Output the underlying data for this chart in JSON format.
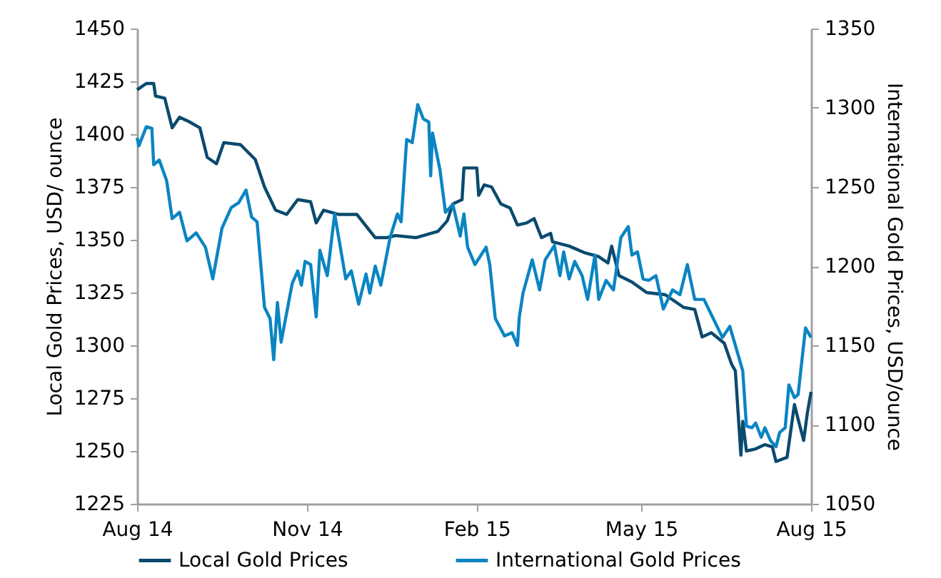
{
  "chart_data": {
    "type": "line",
    "ylabel": "Local Gold Prices, USD/ ounce",
    "y2label": "International Gold Prices, USD/ounce",
    "xlim": [
      "2014-08-01",
      "2015-08-01"
    ],
    "xticks": [
      {
        "value": "2014-08-01",
        "label": "Aug 14"
      },
      {
        "value": "2014-11-01",
        "label": "Nov 14"
      },
      {
        "value": "2015-02-01",
        "label": "Feb 15"
      },
      {
        "value": "2015-05-01",
        "label": "May 15"
      },
      {
        "value": "2015-08-01",
        "label": "Aug 15"
      }
    ],
    "ylim": [
      1225,
      1450
    ],
    "yticks": [
      1225,
      1250,
      1275,
      1300,
      1325,
      1350,
      1375,
      1400,
      1425,
      1450
    ],
    "y2lim": [
      1050,
      1350
    ],
    "y2ticks": [
      1050,
      1100,
      1150,
      1200,
      1250,
      1300,
      1350
    ],
    "legend": "bottom",
    "grid": false,
    "marker": "none",
    "line_style": "solid",
    "series": [
      {
        "name": "Local Gold Prices",
        "color": "#0b4a6e",
        "x": [
          "2014-08-01",
          "2014-08-06",
          "2014-08-10",
          "2014-08-11",
          "2014-08-16",
          "2014-08-20",
          "2014-08-24",
          "2014-08-29",
          "2014-09-04",
          "2014-09-08",
          "2014-09-13",
          "2014-09-17",
          "2014-09-26",
          "2014-10-04",
          "2014-10-09",
          "2014-10-15",
          "2014-10-21",
          "2014-10-27",
          "2014-11-03",
          "2014-11-06",
          "2014-11-10",
          "2014-11-18",
          "2014-11-28",
          "2014-12-08",
          "2014-12-14",
          "2014-12-19",
          "2014-12-30",
          "2015-01-11",
          "2015-01-16",
          "2015-01-19",
          "2015-01-24",
          "2015-01-25",
          "2015-02-01",
          "2015-02-02",
          "2015-02-05",
          "2015-02-09",
          "2015-02-14",
          "2015-02-19",
          "2015-02-23",
          "2015-02-28",
          "2015-03-04",
          "2015-03-08",
          "2015-03-13",
          "2015-03-14",
          "2015-03-23",
          "2015-03-31",
          "2015-04-08",
          "2015-04-13",
          "2015-04-15",
          "2015-04-19",
          "2015-04-26",
          "2015-05-04",
          "2015-05-14",
          "2015-05-24",
          "2015-05-30",
          "2015-06-03",
          "2015-06-08",
          "2015-06-15",
          "2015-06-19",
          "2015-06-21",
          "2015-06-24",
          "2015-06-25",
          "2015-06-27",
          "2015-07-02",
          "2015-07-07",
          "2015-07-11",
          "2015-07-13",
          "2015-07-19",
          "2015-07-23",
          "2015-07-25",
          "2015-07-28",
          "2015-07-30",
          "2015-08-01"
        ],
        "values": [
          1421,
          1424,
          1424,
          1418,
          1417,
          1403,
          1408,
          1406,
          1403,
          1389,
          1386,
          1396,
          1395,
          1388,
          1375,
          1364,
          1362,
          1369,
          1368,
          1358,
          1364,
          1362,
          1362,
          1351,
          1351,
          1352,
          1351,
          1354,
          1359,
          1367,
          1369,
          1384,
          1384,
          1371,
          1376,
          1375,
          1367,
          1365,
          1357,
          1358,
          1360,
          1351,
          1353,
          1349,
          1347,
          1344,
          1342,
          1339,
          1347,
          1333,
          1330,
          1325,
          1324,
          1318,
          1317,
          1304,
          1306,
          1301,
          1291,
          1288,
          1248,
          1264,
          1250,
          1251,
          1253,
          1252,
          1245,
          1247,
          1272,
          1265,
          1255,
          1268,
          1278
        ]
      },
      {
        "name": "International Gold Prices",
        "color": "#0a85c2",
        "axis": "y2",
        "x": [
          "2014-08-01",
          "2014-08-02",
          "2014-08-06",
          "2014-08-09",
          "2014-08-10",
          "2014-08-13",
          "2014-08-17",
          "2014-08-20",
          "2014-08-24",
          "2014-08-28",
          "2014-09-02",
          "2014-09-07",
          "2014-09-11",
          "2014-09-16",
          "2014-09-21",
          "2014-09-25",
          "2014-09-29",
          "2014-10-02",
          "2014-10-05",
          "2014-10-09",
          "2014-10-12",
          "2014-10-14",
          "2014-10-16",
          "2014-10-18",
          "2014-10-24",
          "2014-10-27",
          "2014-10-29",
          "2014-10-31",
          "2014-11-03",
          "2014-11-06",
          "2014-11-08",
          "2014-11-12",
          "2014-11-16",
          "2014-11-22",
          "2014-11-25",
          "2014-11-29",
          "2014-12-03",
          "2014-12-05",
          "2014-12-08",
          "2014-12-11",
          "2014-12-16",
          "2014-12-20",
          "2014-12-22",
          "2014-12-25",
          "2014-12-28",
          "2014-12-31",
          "2015-01-03",
          "2015-01-06",
          "2015-01-07",
          "2015-01-08",
          "2015-01-12",
          "2015-01-15",
          "2015-01-19",
          "2015-01-23",
          "2015-01-25",
          "2015-01-27",
          "2015-01-31",
          "2015-02-06",
          "2015-02-08",
          "2015-02-11",
          "2015-02-16",
          "2015-02-20",
          "2015-02-23",
          "2015-02-24",
          "2015-02-26",
          "2015-03-03",
          "2015-03-07",
          "2015-03-10",
          "2015-03-15",
          "2015-03-18",
          "2015-03-20",
          "2015-03-23",
          "2015-03-26",
          "2015-03-30",
          "2015-04-02",
          "2015-04-06",
          "2015-04-08",
          "2015-04-12",
          "2015-04-16",
          "2015-04-20",
          "2015-04-24",
          "2015-04-26",
          "2015-04-29",
          "2015-05-02",
          "2015-05-05",
          "2015-05-09",
          "2015-05-13",
          "2015-05-18",
          "2015-05-22",
          "2015-05-26",
          "2015-05-30",
          "2015-06-04",
          "2015-06-09",
          "2015-06-14",
          "2015-06-18",
          "2015-06-22",
          "2015-06-25",
          "2015-06-27",
          "2015-06-30",
          "2015-07-02",
          "2015-07-05",
          "2015-07-07",
          "2015-07-10",
          "2015-07-13",
          "2015-07-15",
          "2015-07-18",
          "2015-07-20",
          "2015-07-23",
          "2015-07-25",
          "2015-07-29",
          "2015-08-01"
        ],
        "values": [
          1281,
          1276,
          1288,
          1287,
          1264,
          1267,
          1254,
          1230,
          1234,
          1216,
          1221,
          1212,
          1192,
          1224,
          1237,
          1240,
          1248,
          1231,
          1228,
          1174,
          1167,
          1141,
          1177,
          1152,
          1189,
          1197,
          1188,
          1203,
          1201,
          1168,
          1210,
          1194,
          1233,
          1192,
          1197,
          1176,
          1195,
          1183,
          1200,
          1188,
          1218,
          1233,
          1228,
          1280,
          1278,
          1302,
          1293,
          1291,
          1257,
          1284,
          1261,
          1234,
          1239,
          1219,
          1233,
          1212,
          1201,
          1212,
          1201,
          1167,
          1156,
          1158,
          1150,
          1168,
          1183,
          1204,
          1185,
          1204,
          1213,
          1194,
          1209,
          1192,
          1203,
          1194,
          1179,
          1207,
          1179,
          1191,
          1185,
          1218,
          1225,
          1207,
          1209,
          1192,
          1191,
          1194,
          1173,
          1185,
          1182,
          1201,
          1179,
          1179,
          1167,
          1155,
          1162,
          1146,
          1134,
          1099,
          1098,
          1101,
          1092,
          1098,
          1090,
          1086,
          1095,
          1098,
          1125,
          1117,
          1119,
          1161,
          1155
        ]
      }
    ]
  }
}
